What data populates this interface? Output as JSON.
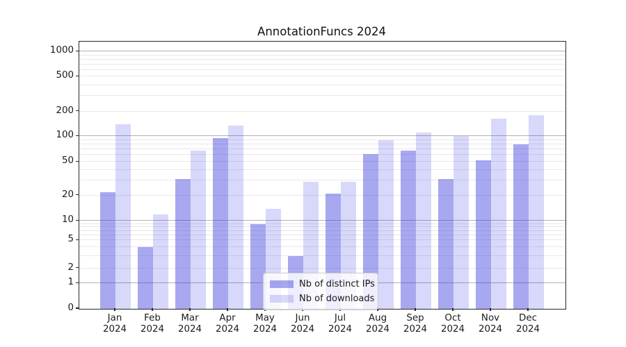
{
  "title": "AnnotationFuncs 2024",
  "chart_data": {
    "type": "bar",
    "title": "AnnotationFuncs 2024",
    "categories": [
      "Jan 2024",
      "Feb 2024",
      "Mar 2024",
      "Apr 2024",
      "May 2024",
      "Jun 2024",
      "Jul 2024",
      "Aug 2024",
      "Sep 2024",
      "Oct 2024",
      "Nov 2024",
      "Dec 2024"
    ],
    "series": [
      {
        "name": "Nb of distinct IPs",
        "color": "rgba(48,48,220,0.42)",
        "values": [
          22,
          4,
          31,
          95,
          9,
          3,
          21,
          62,
          68,
          31,
          52,
          81
        ]
      },
      {
        "name": "Nb of downloads",
        "color": "rgba(38,38,227,0.18)",
        "values": [
          140,
          12,
          68,
          135,
          14,
          29,
          29,
          90,
          112,
          100,
          165,
          180
        ]
      }
    ],
    "yscale": "symlog",
    "y_ticks": [
      0,
      1,
      2,
      5,
      10,
      20,
      50,
      100,
      200,
      500,
      1000
    ],
    "ylim": [
      0,
      1300
    ],
    "grid": "horizontal; dark lines at 1,10,100,1000; light log minor lines",
    "legend_position": "lower center",
    "colors": {
      "major_grid": "#b2b2b2",
      "minor_grid": "#e8e8e8",
      "axis": "#262626",
      "text": "#1a1a1a"
    }
  }
}
